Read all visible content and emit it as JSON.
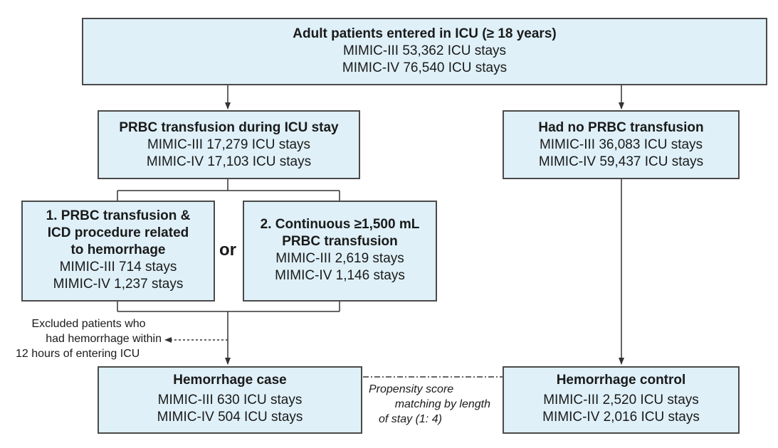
{
  "top": {
    "title": "Adult patients entered in ICU (≥ 18 years)",
    "line1": "MIMIC-III 53,362 ICU stays",
    "line2": "MIMIC-IV 76,540 ICU stays"
  },
  "prbc": {
    "title": "PRBC transfusion during ICU stay",
    "line1": "MIMIC-III 17,279 ICU stays",
    "line2": "MIMIC-IV 17,103 ICU stays"
  },
  "no_prbc": {
    "title": "Had no PRBC transfusion",
    "line1": "MIMIC-III 36,083 ICU stays",
    "line2": "MIMIC-IV 59,437 ICU stays"
  },
  "crit1": {
    "title1": "1. PRBC transfusion &",
    "title2": "ICD procedure related",
    "title3": "to hemorrhage",
    "line1": "MIMIC-III 714 stays",
    "line2": "MIMIC-IV 1,237 stays"
  },
  "or_label": "or",
  "crit2": {
    "title1": "2. Continuous ≥1,500 mL",
    "title2": "PRBC transfusion",
    "line1": "MIMIC-III 2,619 stays",
    "line2": "MIMIC-IV 1,146 stays"
  },
  "excluded": {
    "line1": "Excluded patients who",
    "line2": "had hemorrhage within",
    "line3": "12 hours of entering ICU"
  },
  "case": {
    "title": "Hemorrhage case",
    "line1": "MIMIC-III 630 ICU stays",
    "line2": "MIMIC-IV 504 ICU stays"
  },
  "control": {
    "title": "Hemorrhage control",
    "line1": "MIMIC-III 2,520 ICU stays",
    "line2": "MIMIC-IV 2,016 ICU stays"
  },
  "matching": {
    "line1": "Propensity score",
    "line2": "matching by length",
    "line3": "of stay (1: 4)"
  },
  "colors": {
    "box_fill": "#dff0f8",
    "box_border": "#4a4a4a",
    "line": "#333333"
  }
}
